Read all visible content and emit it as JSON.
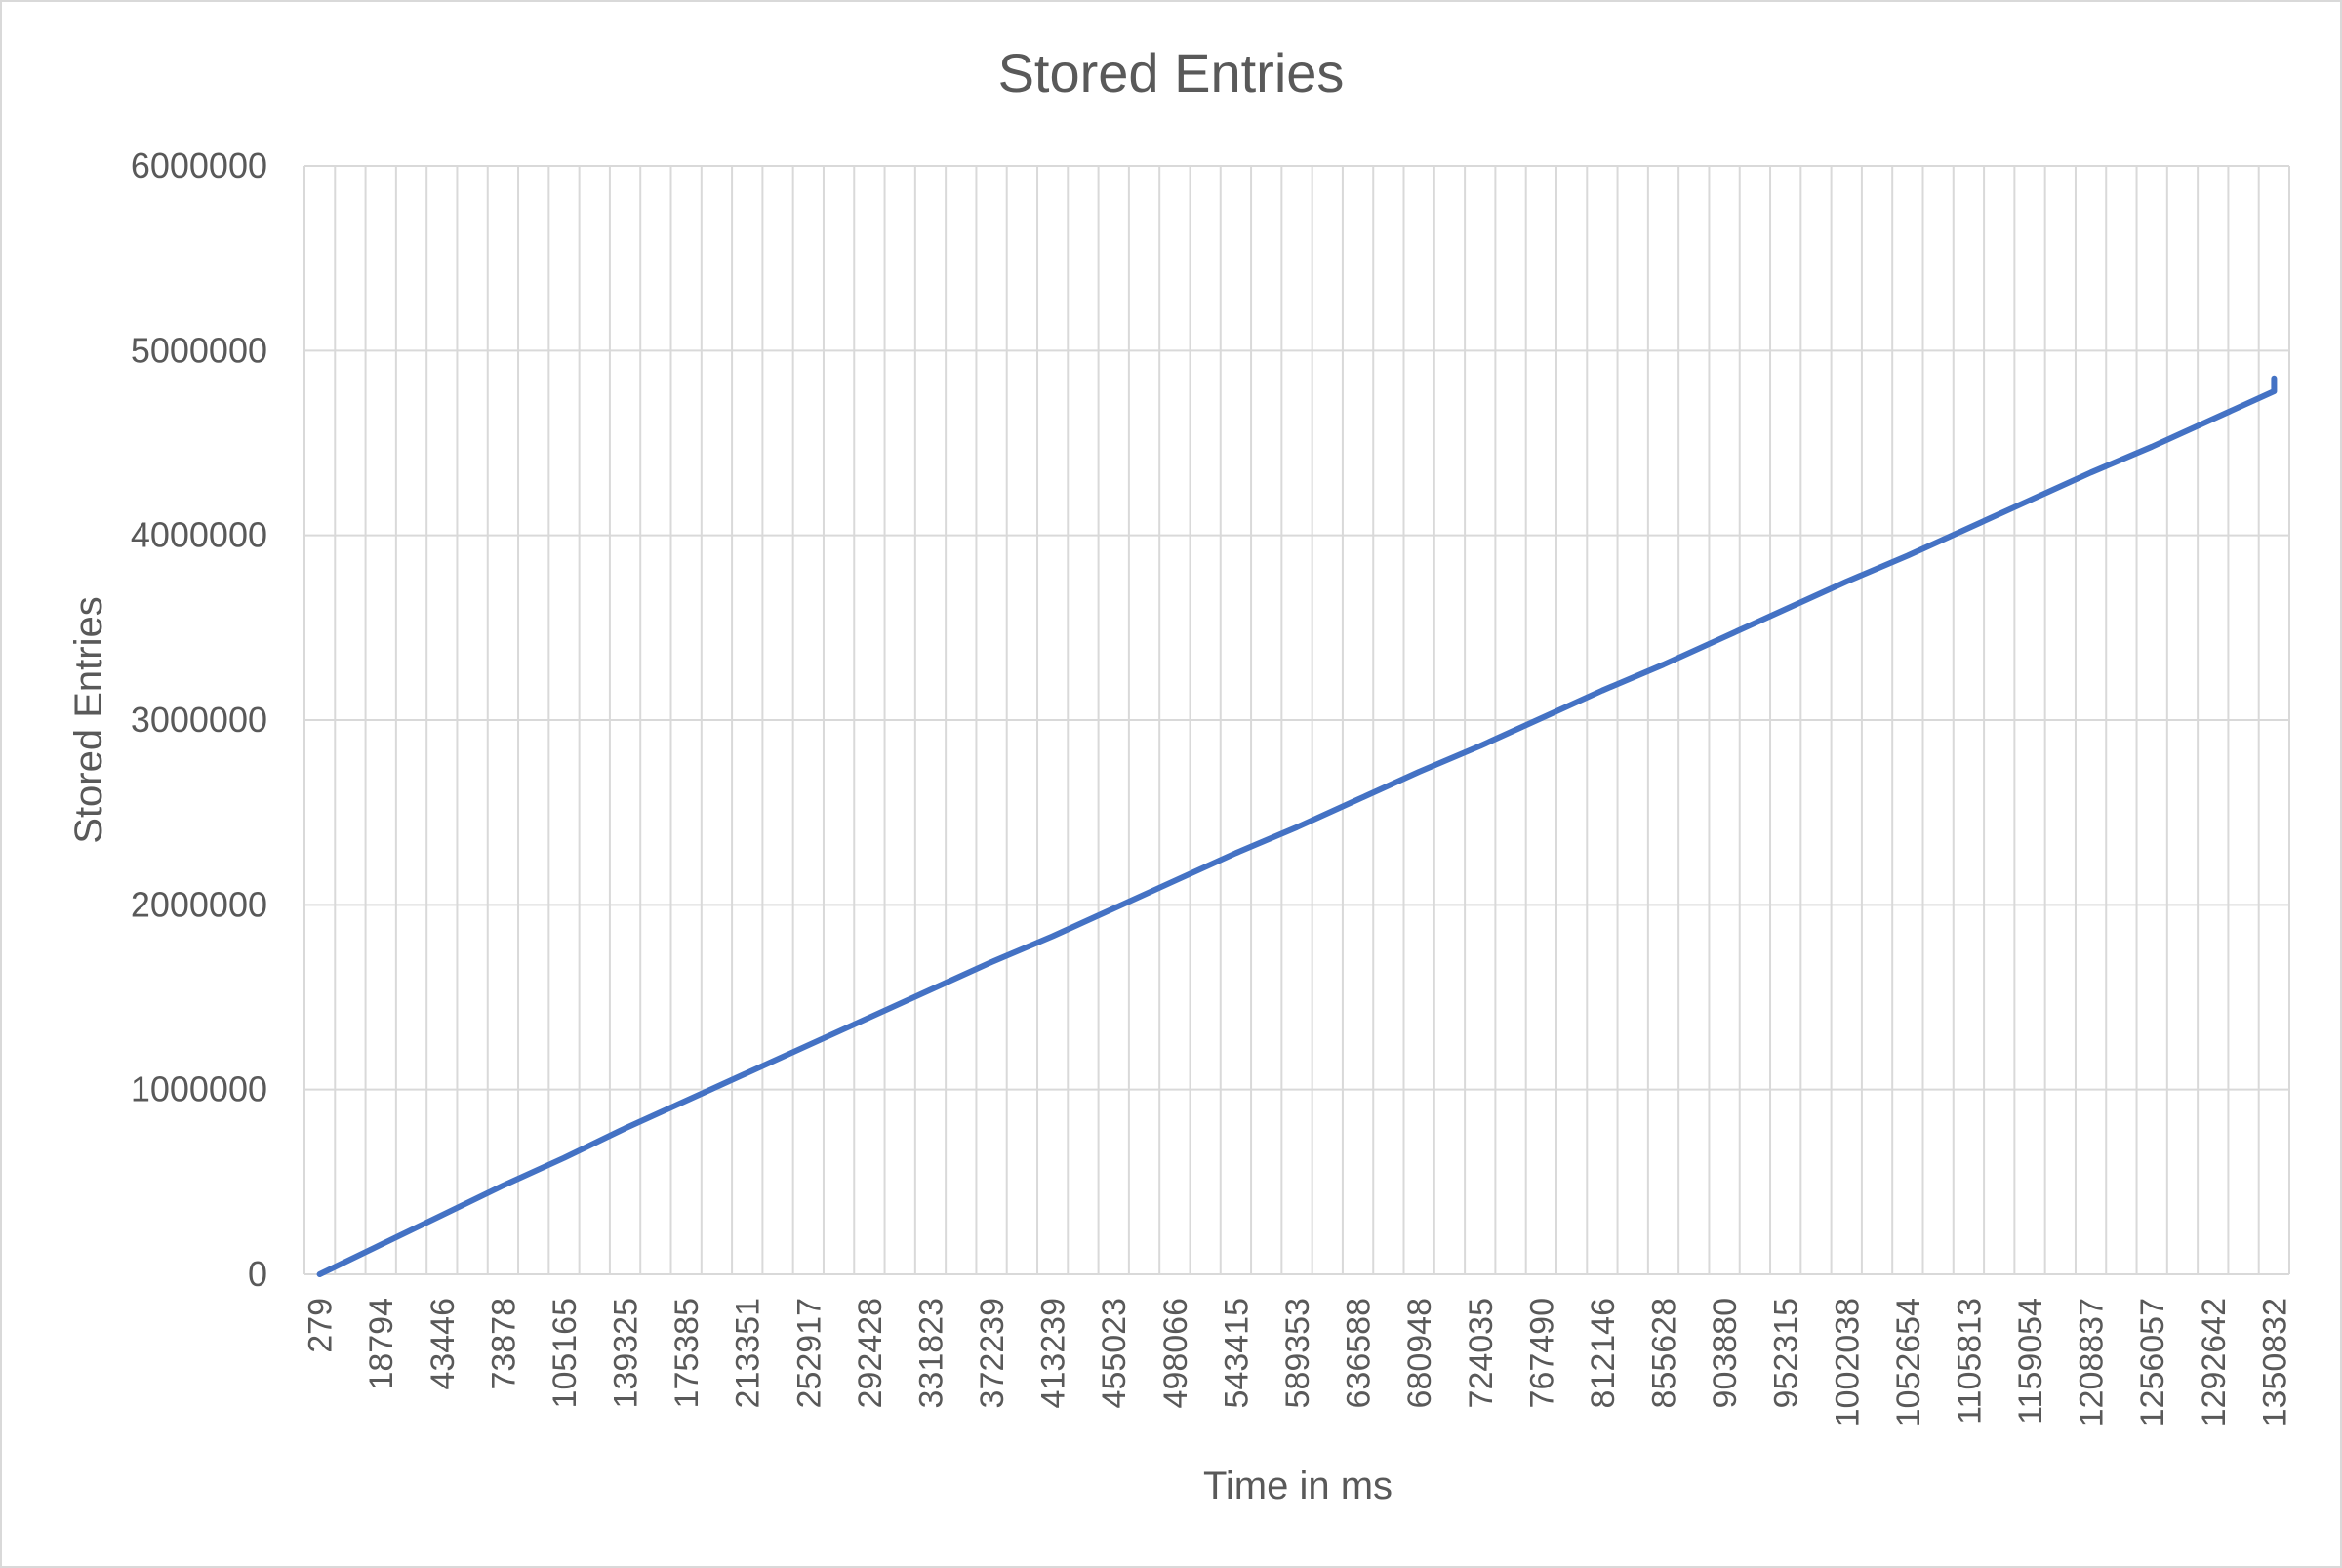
{
  "chart_data": {
    "type": "line",
    "title": "Stored Entries",
    "xlabel": "Time in ms",
    "ylabel": "Stored Entries",
    "ylim": [
      0,
      6000000
    ],
    "y_ticks": [
      "0",
      "1000000",
      "2000000",
      "3000000",
      "4000000",
      "5000000",
      "6000000"
    ],
    "x_tick_labels": [
      "279",
      "18794",
      "43446",
      "73878",
      "105165",
      "139325",
      "175385",
      "213351",
      "252917",
      "292428",
      "331823",
      "372239",
      "413239",
      "455023",
      "498066",
      "543415",
      "589353",
      "636588",
      "680948",
      "724035",
      "767490",
      "812146",
      "855628",
      "903880",
      "952315",
      "1002038",
      "1052654",
      "1105813",
      "1159054",
      "1208837",
      "1256057",
      "1292642",
      "1350832"
    ],
    "x_category_count": 65,
    "grid": true,
    "legend": "none",
    "series": [
      {
        "color": "#4472c4",
        "x": [
          "279",
          "18794",
          "43446",
          "73878",
          "105165",
          "139325",
          "175385",
          "213351",
          "252917",
          "292428",
          "331823",
          "372239",
          "413239",
          "455023",
          "498066",
          "543415",
          "589353",
          "636588",
          "680948",
          "724035",
          "767490",
          "812146",
          "855628",
          "903880",
          "952315",
          "1002038",
          "1052654",
          "1105813",
          "1159054",
          "1208837",
          "1256057",
          "1292642",
          "1350832"
        ],
        "values": [
          0,
          160000,
          320000,
          480000,
          630000,
          790000,
          940000,
          1090000,
          1240000,
          1390000,
          1540000,
          1690000,
          1830000,
          1980000,
          2130000,
          2280000,
          2420000,
          2570000,
          2720000,
          2860000,
          3010000,
          3160000,
          3300000,
          3450000,
          3600000,
          3750000,
          3890000,
          4040000,
          4190000,
          4340000,
          4480000,
          4630000,
          4780000
        ],
        "end_value": 4850000
      }
    ]
  },
  "colors": {
    "line": "#4472c4",
    "grid": "#d9d9d9",
    "text": "#595959"
  }
}
